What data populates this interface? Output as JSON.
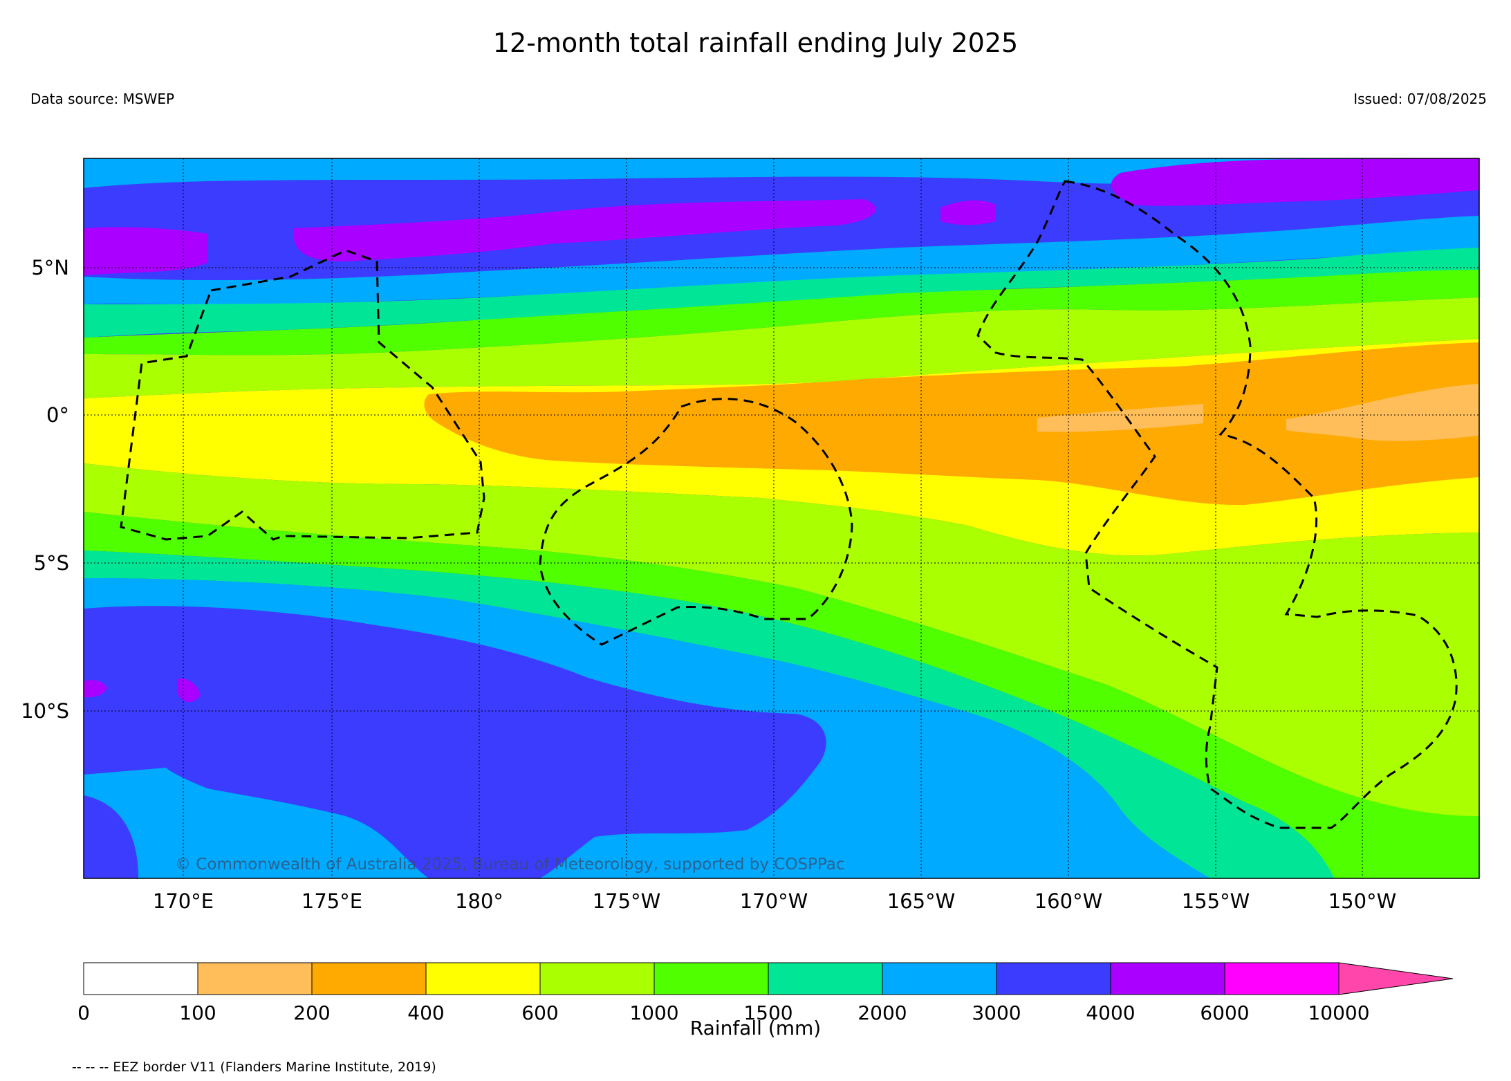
{
  "title": "12-month total rainfall ending July 2025",
  "data_source": "Data source: MSWEP",
  "issued": "Issued: 07/08/2025",
  "copyright": "© Commonwealth of Australia 2025, Bureau of Meteorology, supported by COSPPac",
  "map": {
    "lat_range": [
      "16°S",
      "8°N"
    ],
    "lon_range": [
      "167°E",
      "146°W"
    ],
    "lat_ticks": [
      "5°N",
      "0°",
      "5°S",
      "10°S"
    ],
    "lon_ticks": [
      "170°E",
      "175°E",
      "180°",
      "175°W",
      "170°W",
      "165°W",
      "160°W",
      "155°W",
      "150°W"
    ],
    "gridlines": "dotted"
  },
  "legend": {
    "title": "Rainfall (mm)",
    "bounds": [
      "0",
      "100",
      "200",
      "400",
      "600",
      "1000",
      "1500",
      "2000",
      "3000",
      "4000",
      "6000",
      "10000"
    ],
    "colors": [
      "#ffffff",
      "#ffbe5a",
      "#ffaa00",
      "#ffff00",
      "#aaff00",
      "#50ff00",
      "#00e696",
      "#00aaff",
      "#3c3cff",
      "#aa00ff",
      "#ff00ff",
      "#ff46aa"
    ],
    "extend": "max"
  },
  "eez_note": "-- -- -- EEZ border V11 (Flanders Marine Institute, 2019)"
}
